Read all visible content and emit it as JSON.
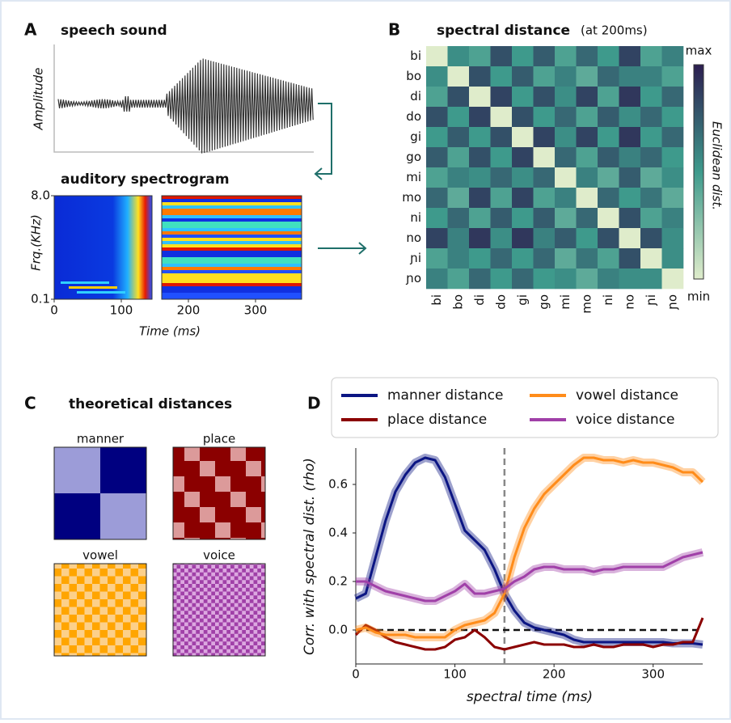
{
  "chart_data": [
    {
      "type": "waveform",
      "label": "A",
      "title": "speech sound",
      "ylabel": "Amplitude"
    },
    {
      "type": "spectrogram",
      "title": "auditory spectrogram",
      "ylabel": "Frq.(KHz)",
      "xlabel": "Time (ms)",
      "ylim": [
        0.1,
        8.0
      ],
      "yticks": [
        0.1,
        {
          "value": 8,
          "label": "8.0"
        }
      ],
      "xlim": [
        0,
        370
      ],
      "xticks": [
        0,
        100,
        200,
        300
      ]
    },
    {
      "type": "heatmap",
      "label": "B",
      "title": "spectral distance",
      "subtitle": "(at 200ms)",
      "colorbar_label": "Euclidean dist.",
      "categories": [
        "bi",
        "bo",
        "di",
        "do",
        "gi",
        "go",
        "mi",
        "mo",
        "ni",
        "no",
        "ɲi",
        "ɲo"
      ],
      "zlim": [
        0,
        1
      ],
      "colorbar_ticks": [
        {
          "value": 1,
          "label": "max"
        },
        {
          "value": 0,
          "label": "min"
        }
      ],
      "values": [
        [
          0,
          0.55,
          0.45,
          0.8,
          0.5,
          0.75,
          0.45,
          0.7,
          0.5,
          0.85,
          0.45,
          0.6
        ],
        [
          0.55,
          0,
          0.8,
          0.5,
          0.75,
          0.45,
          0.6,
          0.4,
          0.7,
          0.6,
          0.6,
          0.45
        ],
        [
          0.45,
          0.8,
          0,
          0.85,
          0.5,
          0.8,
          0.55,
          0.85,
          0.45,
          0.9,
          0.5,
          0.7
        ],
        [
          0.8,
          0.5,
          0.85,
          0,
          0.8,
          0.5,
          0.7,
          0.45,
          0.75,
          0.55,
          0.7,
          0.5
        ],
        [
          0.5,
          0.75,
          0.5,
          0.8,
          0,
          0.85,
          0.55,
          0.85,
          0.5,
          0.9,
          0.5,
          0.7
        ],
        [
          0.75,
          0.45,
          0.8,
          0.5,
          0.85,
          0,
          0.7,
          0.45,
          0.75,
          0.6,
          0.7,
          0.5
        ],
        [
          0.45,
          0.6,
          0.55,
          0.7,
          0.55,
          0.7,
          0,
          0.6,
          0.4,
          0.75,
          0.4,
          0.55
        ],
        [
          0.7,
          0.4,
          0.85,
          0.45,
          0.85,
          0.45,
          0.6,
          0,
          0.7,
          0.5,
          0.65,
          0.4
        ],
        [
          0.5,
          0.7,
          0.45,
          0.75,
          0.5,
          0.75,
          0.4,
          0.7,
          0,
          0.8,
          0.45,
          0.6
        ],
        [
          0.85,
          0.6,
          0.9,
          0.55,
          0.9,
          0.6,
          0.75,
          0.5,
          0.8,
          0,
          0.8,
          0.55
        ],
        [
          0.45,
          0.6,
          0.5,
          0.7,
          0.5,
          0.7,
          0.4,
          0.65,
          0.45,
          0.8,
          0,
          0.55
        ],
        [
          0.6,
          0.45,
          0.7,
          0.5,
          0.7,
          0.5,
          0.55,
          0.4,
          0.6,
          0.55,
          0.55,
          0
        ]
      ]
    },
    {
      "type": "theoretical",
      "label": "C",
      "title": "theoretical distances",
      "subplots": [
        {
          "title": "manner"
        },
        {
          "title": "place"
        },
        {
          "title": "vowel"
        },
        {
          "title": "voice"
        }
      ]
    },
    {
      "type": "line",
      "label": "D",
      "ylabel": "Corr. with spectral dist. (rho)",
      "xlabel": "spectral time (ms)",
      "xlim": [
        0,
        350
      ],
      "xticks": [
        0,
        100,
        200,
        300
      ],
      "ylim": [
        -0.14,
        0.75
      ],
      "yticks": [
        {
          "value": 0,
          "label": "0.0"
        },
        0.2,
        0.4,
        0.6
      ],
      "vline": 150,
      "hline": 0,
      "x": [
        0,
        10,
        20,
        30,
        40,
        50,
        60,
        70,
        80,
        90,
        100,
        110,
        120,
        130,
        140,
        150,
        160,
        170,
        180,
        190,
        200,
        210,
        220,
        230,
        240,
        250,
        260,
        270,
        280,
        290,
        300,
        310,
        320,
        330,
        340,
        350
      ],
      "series": [
        {
          "name": "manner distance",
          "color": "#0b1583",
          "values": [
            0.13,
            0.15,
            0.3,
            0.45,
            0.57,
            0.64,
            0.69,
            0.71,
            0.7,
            0.63,
            0.52,
            0.41,
            0.37,
            0.33,
            0.25,
            0.15,
            0.08,
            0.03,
            0.01,
            0,
            -0.01,
            -0.02,
            -0.04,
            -0.05,
            -0.05,
            -0.05,
            -0.05,
            -0.05,
            -0.05,
            -0.05,
            -0.05,
            -0.05,
            -0.055,
            -0.055,
            -0.055,
            -0.06
          ]
        },
        {
          "name": "place distance",
          "color": "#8b0000",
          "values": [
            -0.02,
            0.02,
            0,
            -0.03,
            -0.05,
            -0.06,
            -0.07,
            -0.08,
            -0.08,
            -0.07,
            -0.04,
            -0.03,
            0,
            -0.03,
            -0.07,
            -0.08,
            -0.07,
            -0.06,
            -0.05,
            -0.06,
            -0.06,
            -0.06,
            -0.07,
            -0.07,
            -0.06,
            -0.07,
            -0.07,
            -0.06,
            -0.06,
            -0.06,
            -0.07,
            -0.06,
            -0.06,
            -0.05,
            -0.05,
            0.05
          ]
        },
        {
          "name": "vowel distance",
          "color": "#ff8c1a",
          "values": [
            0,
            0.01,
            -0.01,
            -0.02,
            -0.02,
            -0.02,
            -0.03,
            -0.03,
            -0.03,
            -0.03,
            0,
            0.02,
            0.03,
            0.04,
            0.07,
            0.15,
            0.3,
            0.42,
            0.5,
            0.56,
            0.6,
            0.64,
            0.68,
            0.71,
            0.71,
            0.7,
            0.7,
            0.69,
            0.7,
            0.69,
            0.69,
            0.68,
            0.67,
            0.65,
            0.65,
            0.61
          ]
        },
        {
          "name": "voice distance",
          "color": "#a040a8",
          "values": [
            0.2,
            0.2,
            0.18,
            0.16,
            0.15,
            0.14,
            0.13,
            0.12,
            0.12,
            0.14,
            0.16,
            0.19,
            0.15,
            0.15,
            0.16,
            0.17,
            0.2,
            0.22,
            0.25,
            0.26,
            0.26,
            0.25,
            0.25,
            0.25,
            0.24,
            0.25,
            0.25,
            0.26,
            0.26,
            0.26,
            0.26,
            0.26,
            0.28,
            0.3,
            0.31,
            0.32
          ]
        }
      ]
    }
  ]
}
